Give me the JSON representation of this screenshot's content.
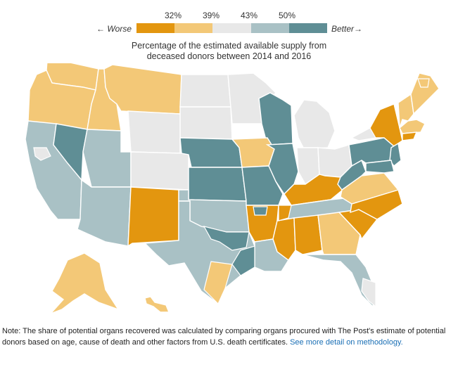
{
  "legend": {
    "worse_label": "← Worse",
    "better_label": "Better→",
    "ticks": [
      "32%",
      "39%",
      "43%",
      "50%"
    ],
    "colors": [
      "#e3960f",
      "#f3c877",
      "#e8e8e8",
      "#a9c1c5",
      "#5f8e95"
    ]
  },
  "subtitle": {
    "line1": "Percentage of the estimated available supply from",
    "line2": "deceased donors between 2014 and 2016"
  },
  "note": {
    "text": "Note: The share of potential organs recovered was calculated by comparing organs procured with The Post's estimate of potential donors based on age, cause of death and other factors from U.S. death certificates.",
    "link_text": "See more detail on methodology."
  },
  "palette": {
    "worst": "#e3960f",
    "low": "#f3c877",
    "mid": "#e8e8e8",
    "high": "#a9c1c5",
    "best": "#5f8e95"
  },
  "regions": [
    {
      "name": "Washington",
      "bin": "low"
    },
    {
      "name": "Oregon",
      "bin": "low"
    },
    {
      "name": "Idaho",
      "bin": "low"
    },
    {
      "name": "Montana",
      "bin": "low"
    },
    {
      "name": "North Dakota",
      "bin": "mid"
    },
    {
      "name": "South Dakota",
      "bin": "mid"
    },
    {
      "name": "Minnesota",
      "bin": "mid"
    },
    {
      "name": "Wisconsin",
      "bin": "best"
    },
    {
      "name": "Michigan",
      "bin": "mid"
    },
    {
      "name": "California",
      "bin": "high"
    },
    {
      "name": "Nevada",
      "bin": "best"
    },
    {
      "name": "Utah",
      "bin": "high"
    },
    {
      "name": "Arizona",
      "bin": "high"
    },
    {
      "name": "Wyoming",
      "bin": "mid"
    },
    {
      "name": "Colorado",
      "bin": "mid"
    },
    {
      "name": "New Mexico",
      "bin": "worst"
    },
    {
      "name": "Nebraska",
      "bin": "best"
    },
    {
      "name": "Kansas",
      "bin": "best"
    },
    {
      "name": "Oklahoma",
      "bin": "high"
    },
    {
      "name": "Texas",
      "bin": "high"
    },
    {
      "name": "Iowa",
      "bin": "low"
    },
    {
      "name": "Missouri",
      "bin": "best"
    },
    {
      "name": "Arkansas",
      "bin": "worst"
    },
    {
      "name": "Louisiana",
      "bin": "high"
    },
    {
      "name": "Illinois",
      "bin": "best"
    },
    {
      "name": "Indiana",
      "bin": "mid"
    },
    {
      "name": "Ohio",
      "bin": "mid"
    },
    {
      "name": "Kentucky",
      "bin": "worst"
    },
    {
      "name": "Tennessee",
      "bin": "high"
    },
    {
      "name": "Mississippi",
      "bin": "worst"
    },
    {
      "name": "Alabama",
      "bin": "worst"
    },
    {
      "name": "Georgia",
      "bin": "low"
    },
    {
      "name": "Florida",
      "bin": "high"
    },
    {
      "name": "South Carolina",
      "bin": "worst"
    },
    {
      "name": "North Carolina",
      "bin": "worst"
    },
    {
      "name": "Virginia",
      "bin": "low"
    },
    {
      "name": "West Virginia",
      "bin": "best"
    },
    {
      "name": "Pennsylvania",
      "bin": "best"
    },
    {
      "name": "New York",
      "bin": "worst"
    },
    {
      "name": "Vermont/New Hampshire",
      "bin": "low"
    },
    {
      "name": "Maine",
      "bin": "low"
    },
    {
      "name": "Massachusetts",
      "bin": "low"
    },
    {
      "name": "Connecticut",
      "bin": "worst"
    },
    {
      "name": "New Jersey",
      "bin": "best"
    },
    {
      "name": "Maryland",
      "bin": "best"
    },
    {
      "name": "Alaska",
      "bin": "low"
    },
    {
      "name": "Hawaii",
      "bin": "low"
    },
    {
      "name": "South Texas",
      "bin": "low"
    },
    {
      "name": "North Texas",
      "bin": "best"
    },
    {
      "name": "Southeast Texas",
      "bin": "best"
    },
    {
      "name": "Upstate New York",
      "bin": "mid"
    },
    {
      "name": "Northern Maine",
      "bin": "low"
    },
    {
      "name": "Bay Area",
      "bin": "mid"
    },
    {
      "name": "South Florida",
      "bin": "mid"
    },
    {
      "name": "Memphis",
      "bin": "worst"
    },
    {
      "name": "Northern Arkansas",
      "bin": "best"
    }
  ]
}
